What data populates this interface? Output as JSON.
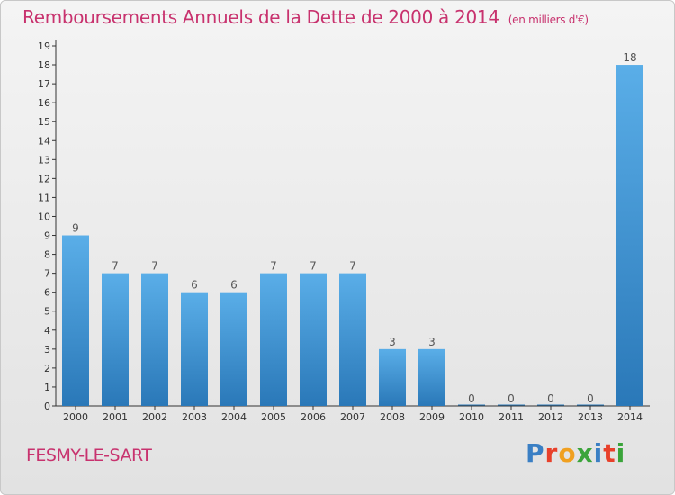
{
  "header": {
    "title": "Remboursements Annuels de la Dette de 2000 à 2014",
    "unit": "(en milliers d'€)"
  },
  "footer": {
    "commune": "FESMY-LE-SART",
    "brand": "Proxiti",
    "brand_colors": [
      "#3a7fc4",
      "#e8402a",
      "#f0a020",
      "#3aa43a",
      "#3a7fc4",
      "#e8402a",
      "#3aa43a"
    ]
  },
  "chart_data": {
    "type": "bar",
    "categories": [
      "2000",
      "2001",
      "2002",
      "2003",
      "2004",
      "2005",
      "2006",
      "2007",
      "2008",
      "2009",
      "2010",
      "2011",
      "2012",
      "2013",
      "2014"
    ],
    "values": [
      9,
      7,
      7,
      6,
      6,
      7,
      7,
      7,
      3,
      3,
      0,
      0,
      0,
      0,
      18
    ],
    "data_labels": [
      "9",
      "7",
      "7",
      "6",
      "6",
      "7",
      "7",
      "7",
      "3",
      "3",
      "0",
      "0",
      "0",
      "0",
      "18"
    ],
    "yticks": [
      "0",
      "1",
      "2",
      "3",
      "4",
      "5",
      "6",
      "7",
      "8",
      "9",
      "10",
      "11",
      "12",
      "13",
      "14",
      "15",
      "16",
      "17",
      "18",
      "19"
    ],
    "ylim": [
      0,
      19
    ],
    "grid": false,
    "bar_color_top": "#5aaee8",
    "bar_color_bottom": "#2a78b8",
    "label_color": "#555555"
  }
}
